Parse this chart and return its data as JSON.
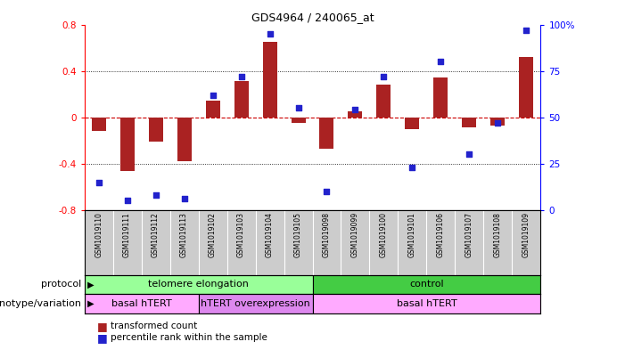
{
  "title": "GDS4964 / 240065_at",
  "samples": [
    "GSM1019110",
    "GSM1019111",
    "GSM1019112",
    "GSM1019113",
    "GSM1019102",
    "GSM1019103",
    "GSM1019104",
    "GSM1019105",
    "GSM1019098",
    "GSM1019099",
    "GSM1019100",
    "GSM1019101",
    "GSM1019106",
    "GSM1019107",
    "GSM1019108",
    "GSM1019109"
  ],
  "transformed_count": [
    -0.12,
    -0.46,
    -0.21,
    -0.38,
    0.14,
    0.31,
    0.65,
    -0.05,
    -0.27,
    0.05,
    0.28,
    -0.1,
    0.34,
    -0.09,
    -0.07,
    0.52
  ],
  "percentile_rank": [
    15,
    5,
    8,
    6,
    62,
    72,
    95,
    55,
    10,
    54,
    72,
    23,
    80,
    30,
    47,
    97
  ],
  "left_ylim": [
    -0.8,
    0.8
  ],
  "right_ylim": [
    0,
    100
  ],
  "left_yticks": [
    -0.8,
    -0.4,
    0,
    0.4,
    0.8
  ],
  "right_yticks": [
    0,
    25,
    50,
    75,
    100
  ],
  "right_yticklabels": [
    "0",
    "25",
    "50",
    "75",
    "100%"
  ],
  "bar_color": "#aa2222",
  "dot_color": "#2222cc",
  "zero_line_color": "#cc0000",
  "protocol_groups": [
    {
      "label": "telomere elongation",
      "start": 0,
      "end": 7,
      "color": "#99ff99"
    },
    {
      "label": "control",
      "start": 8,
      "end": 15,
      "color": "#44cc44"
    }
  ],
  "genotype_groups": [
    {
      "label": "basal hTERT",
      "start": 0,
      "end": 3,
      "color": "#ffaaff"
    },
    {
      "label": "hTERT overexpression",
      "start": 4,
      "end": 7,
      "color": "#dd88ee"
    },
    {
      "label": "basal hTERT",
      "start": 8,
      "end": 15,
      "color": "#ffaaff"
    }
  ],
  "protocol_label": "protocol",
  "genotype_label": "genotype/variation",
  "tick_bg_color": "#cccccc",
  "legend_bar_label": "transformed count",
  "legend_dot_label": "percentile rank within the sample"
}
